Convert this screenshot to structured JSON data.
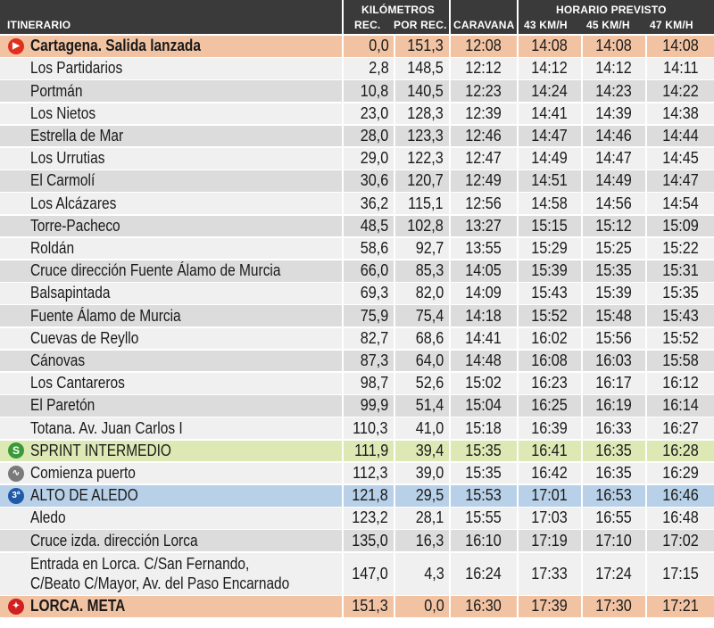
{
  "header": {
    "itinerario": "ITINERARIO",
    "kilometros": "KILÓMETROS",
    "rec": "REC.",
    "por_rec": "POR REC.",
    "caravana": "CARAVANA",
    "horario_previsto": "HORARIO PREVISTO",
    "speed_43": "43 KM/H",
    "speed_45": "45 KM/H",
    "speed_47": "47 KM/H"
  },
  "colors": {
    "header_bg": "#3a3a3a",
    "row_gray": "#dcdcdc",
    "row_white": "#f0f0f0",
    "salida_bg": "#f2c3a3",
    "sprint_bg": "#dce9b4",
    "alto_bg": "#b8d1e8",
    "meta_bg": "#f2c3a3",
    "salida_icon": "#e0301e",
    "sprint_icon": "#3a9a3a",
    "puerto_icon": "#7a7a7a",
    "alto_icon": "#1f5aa8",
    "meta_icon": "#d02020"
  },
  "rows": [
    {
      "place": "Cartagena. Salida lanzada",
      "rec": "0,0",
      "por_rec": "151,3",
      "caravana": "12:08",
      "h43": "14:08",
      "h45": "14:08",
      "h47": "14:08",
      "type": "salida",
      "icon": "play-icon"
    },
    {
      "place": "Los Partidarios",
      "rec": "2,8",
      "por_rec": "148,5",
      "caravana": "12:12",
      "h43": "14:12",
      "h45": "14:12",
      "h47": "14:11",
      "type": "white"
    },
    {
      "place": "Portmán",
      "rec": "10,8",
      "por_rec": "140,5",
      "caravana": "12:23",
      "h43": "14:24",
      "h45": "14:23",
      "h47": "14:22",
      "type": "gray"
    },
    {
      "place": "Los Nietos",
      "rec": "23,0",
      "por_rec": "128,3",
      "caravana": "12:39",
      "h43": "14:41",
      "h45": "14:39",
      "h47": "14:38",
      "type": "white"
    },
    {
      "place": "Estrella de Mar",
      "rec": "28,0",
      "por_rec": "123,3",
      "caravana": "12:46",
      "h43": "14:47",
      "h45": "14:46",
      "h47": "14:44",
      "type": "gray"
    },
    {
      "place": "Los Urrutias",
      "rec": "29,0",
      "por_rec": "122,3",
      "caravana": "12:47",
      "h43": "14:49",
      "h45": "14:47",
      "h47": "14:45",
      "type": "white"
    },
    {
      "place": "El Carmolí",
      "rec": "30,6",
      "por_rec": "120,7",
      "caravana": "12:49",
      "h43": "14:51",
      "h45": "14:49",
      "h47": "14:47",
      "type": "gray"
    },
    {
      "place": "Los Alcázares",
      "rec": "36,2",
      "por_rec": "115,1",
      "caravana": "12:56",
      "h43": "14:58",
      "h45": "14:56",
      "h47": "14:54",
      "type": "white"
    },
    {
      "place": "Torre-Pacheco",
      "rec": "48,5",
      "por_rec": "102,8",
      "caravana": "13:27",
      "h43": "15:15",
      "h45": "15:12",
      "h47": "15:09",
      "type": "gray"
    },
    {
      "place": "Roldán",
      "rec": "58,6",
      "por_rec": "92,7",
      "caravana": "13:55",
      "h43": "15:29",
      "h45": "15:25",
      "h47": "15:22",
      "type": "white"
    },
    {
      "place": "Cruce dirección Fuente Álamo de Murcia",
      "rec": "66,0",
      "por_rec": "85,3",
      "caravana": "14:05",
      "h43": "15:39",
      "h45": "15:35",
      "h47": "15:31",
      "type": "gray"
    },
    {
      "place": "Balsapintada",
      "rec": "69,3",
      "por_rec": "82,0",
      "caravana": "14:09",
      "h43": "15:43",
      "h45": "15:39",
      "h47": "15:35",
      "type": "white"
    },
    {
      "place": "Fuente Álamo de Murcia",
      "rec": "75,9",
      "por_rec": "75,4",
      "caravana": "14:18",
      "h43": "15:52",
      "h45": "15:48",
      "h47": "15:43",
      "type": "gray"
    },
    {
      "place": "Cuevas de Reyllo",
      "rec": "82,7",
      "por_rec": "68,6",
      "caravana": "14:41",
      "h43": "16:02",
      "h45": "15:56",
      "h47": "15:52",
      "type": "white"
    },
    {
      "place": "Cánovas",
      "rec": "87,3",
      "por_rec": "64,0",
      "caravana": "14:48",
      "h43": "16:08",
      "h45": "16:03",
      "h47": "15:58",
      "type": "gray"
    },
    {
      "place": "Los Cantareros",
      "rec": "98,7",
      "por_rec": "52,6",
      "caravana": "15:02",
      "h43": "16:23",
      "h45": "16:17",
      "h47": "16:12",
      "type": "white"
    },
    {
      "place": "El Paretón",
      "rec": "99,9",
      "por_rec": "51,4",
      "caravana": "15:04",
      "h43": "16:25",
      "h45": "16:19",
      "h47": "16:14",
      "type": "gray"
    },
    {
      "place": "Totana. Av. Juan Carlos I",
      "rec": "110,3",
      "por_rec": "41,0",
      "caravana": "15:18",
      "h43": "16:39",
      "h45": "16:33",
      "h47": "16:27",
      "type": "white"
    },
    {
      "place": "SPRINT INTERMEDIO",
      "rec": "111,9",
      "por_rec": "39,4",
      "caravana": "15:35",
      "h43": "16:41",
      "h45": "16:35",
      "h47": "16:28",
      "type": "sprint",
      "icon": "sprint-icon",
      "icon_text": "S"
    },
    {
      "place": "Comienza puerto",
      "rec": "112,3",
      "por_rec": "39,0",
      "caravana": "15:35",
      "h43": "16:42",
      "h45": "16:35",
      "h47": "16:29",
      "type": "white",
      "icon": "mountain-start-icon"
    },
    {
      "place": "ALTO DE ALEDO",
      "rec": "121,8",
      "por_rec": "29,5",
      "caravana": "15:53",
      "h43": "17:01",
      "h45": "16:53",
      "h47": "16:46",
      "type": "alto",
      "icon": "third-category-climb-icon",
      "icon_text": "3ª"
    },
    {
      "place": "Aledo",
      "rec": "123,2",
      "por_rec": "28,1",
      "caravana": "15:55",
      "h43": "17:03",
      "h45": "16:55",
      "h47": "16:48",
      "type": "white"
    },
    {
      "place": "Cruce izda. dirección Lorca",
      "rec": "135,0",
      "por_rec": "16,3",
      "caravana": "16:10",
      "h43": "17:19",
      "h45": "17:10",
      "h47": "17:02",
      "type": "gray"
    },
    {
      "place": "Entrada en Lorca. C/San Fernando,",
      "place2": "C/Beato C/Mayor, Av. del Paso Encarnado",
      "rec": "147,0",
      "por_rec": "4,3",
      "caravana": "16:24",
      "h43": "17:33",
      "h45": "17:24",
      "h47": "17:15",
      "type": "white"
    },
    {
      "place": "LORCA. META",
      "rec": "151,3",
      "por_rec": "0,0",
      "caravana": "16:30",
      "h43": "17:39",
      "h45": "17:30",
      "h47": "17:21",
      "type": "meta",
      "icon": "finish-flag-icon"
    }
  ]
}
